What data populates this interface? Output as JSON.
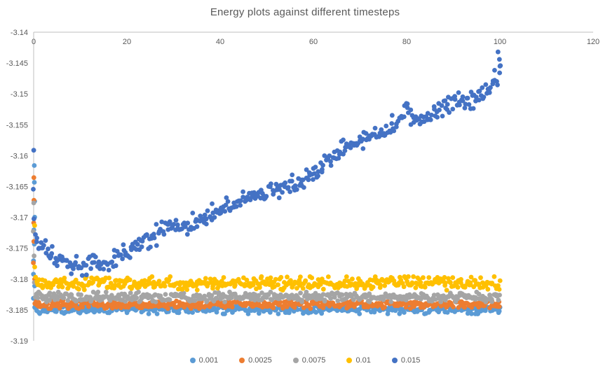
{
  "chart_data": {
    "type": "scatter",
    "title": "Energy plots against different timesteps",
    "xlabel": "",
    "ylabel": "",
    "xlim": [
      0,
      120
    ],
    "ylim": [
      -3.19,
      -3.14
    ],
    "x_ticks": [
      0,
      20,
      40,
      60,
      80,
      100,
      120
    ],
    "y_tick_labels": [
      "-3.14",
      "-3.145",
      "-3.15",
      "-3.155",
      "-3.16",
      "-3.165",
      "-3.17",
      "-3.175",
      "-3.18",
      "-3.185",
      "-3.19"
    ],
    "grid": false,
    "legend_position": "bottom",
    "axis_color": "#BFBFBF",
    "tick_label_color": "#595959",
    "title_color": "#595959",
    "x_data_range": [
      0,
      100
    ],
    "marker_radius": 3.4,
    "series": [
      {
        "name": "0.001",
        "color": "#5B9BD5",
        "count": 430,
        "mean": -3.1849,
        "noise_sd": 0.00035,
        "transient": [
          -3.1616,
          -3.1645,
          -3.1671,
          -3.1697,
          -3.1722,
          -3.1746,
          -3.1768,
          -3.179,
          -3.1811,
          -3.1831
        ]
      },
      {
        "name": "0.0025",
        "color": "#ED7D31",
        "count": 430,
        "mean": -3.1841,
        "noise_sd": 0.00032,
        "transient": [
          -3.1633,
          -3.1671,
          -3.1706,
          -3.1739,
          -3.1771,
          -3.1801
        ]
      },
      {
        "name": "0.0075",
        "color": "#A5A5A5",
        "count": 430,
        "mean": -3.1829,
        "noise_sd": 0.00038,
        "transient": [
          -3.1676,
          -3.1721,
          -3.1765,
          -3.1805
        ]
      },
      {
        "name": "0.01",
        "color": "#FFC000",
        "count": 450,
        "mean": -3.1807,
        "noise_sd": 0.00052,
        "transient": [
          -3.1714,
          -3.1783
        ]
      },
      {
        "name": "0.015",
        "color": "#4472C4",
        "count": 420,
        "noise_sd": 0.00082,
        "transient": [
          -3.1589,
          -3.1655,
          -3.1702
        ],
        "trend": [
          [
            0.3,
            -3.1742
          ],
          [
            4,
            -3.1764
          ],
          [
            8,
            -3.1776
          ],
          [
            13,
            -3.1778
          ],
          [
            17,
            -3.1767
          ],
          [
            20,
            -3.1755
          ],
          [
            24,
            -3.1739
          ],
          [
            28,
            -3.1722
          ],
          [
            32,
            -3.1712
          ],
          [
            36,
            -3.1704
          ],
          [
            40,
            -3.1689
          ],
          [
            44,
            -3.1675
          ],
          [
            48,
            -3.1663
          ],
          [
            52,
            -3.1657
          ],
          [
            56,
            -3.1646
          ],
          [
            60,
            -3.163
          ],
          [
            64,
            -3.1604
          ],
          [
            68,
            -3.1584
          ],
          [
            72,
            -3.1571
          ],
          [
            76,
            -3.1559
          ],
          [
            80,
            -3.1528
          ],
          [
            83,
            -3.1544
          ],
          [
            87,
            -3.1522
          ],
          [
            90,
            -3.151
          ],
          [
            93,
            -3.1516
          ],
          [
            96,
            -3.1503
          ],
          [
            98,
            -3.1488
          ],
          [
            100,
            -3.1465
          ]
        ],
        "outliers": [
          [
            99.6,
            -3.1432
          ],
          [
            99.9,
            -3.1444
          ],
          [
            100,
            -3.1455
          ]
        ]
      }
    ]
  }
}
